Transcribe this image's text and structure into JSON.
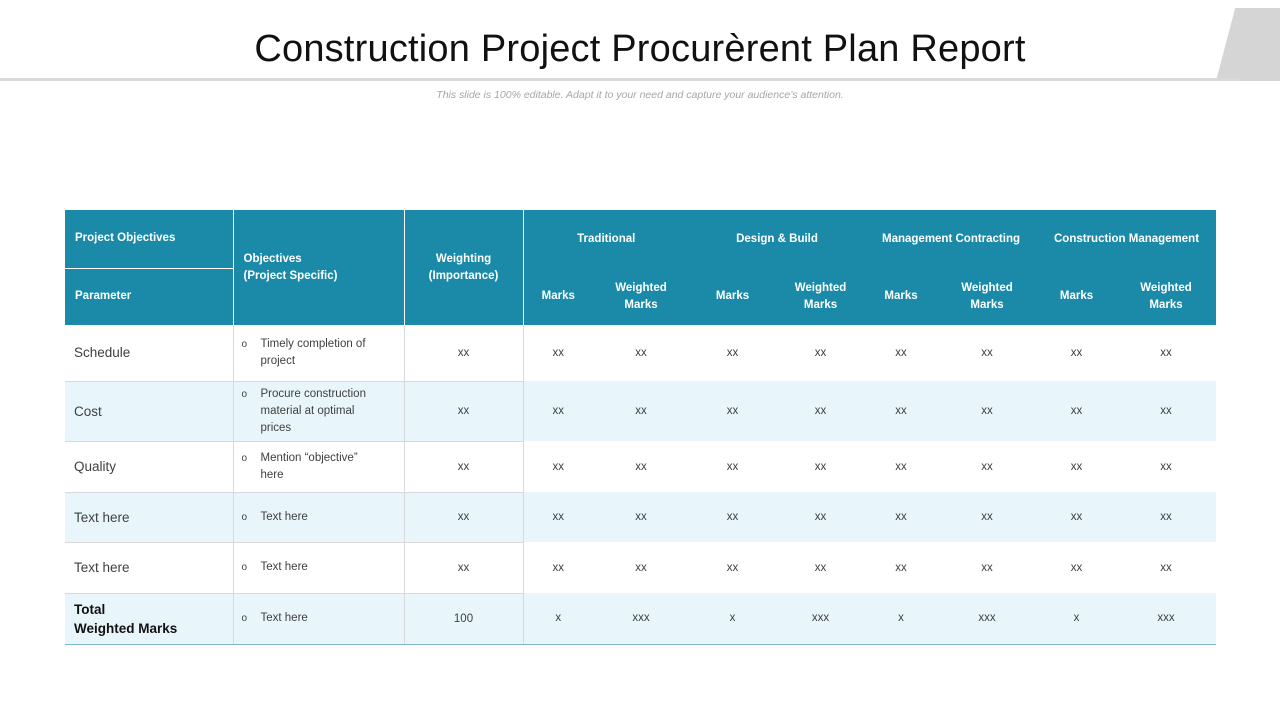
{
  "header": {
    "title": "Construction Project Procurèrent Plan Report",
    "subtitle": "This slide is 100% editable. Adapt it to your need and capture your audience’s attention."
  },
  "table": {
    "headers": {
      "project_objectives": "Project Objectives",
      "parameter": "Parameter",
      "objectives_line1": "Objectives",
      "objectives_line2": "(Project Specific)",
      "weighting_line1": "Weighting",
      "weighting_line2": "(Importance)",
      "groups": [
        "Traditional",
        "Design & Build",
        "Management Contracting",
        "Construction Management"
      ],
      "marks": "Marks",
      "weighted_line1": "Weighted",
      "weighted_line2": "Marks"
    },
    "bullet_symbol": "o",
    "rows": [
      {
        "parameter": "Schedule",
        "objective_lines": [
          "Timely completion of",
          "project"
        ],
        "weighting": "xx",
        "cells": [
          "xx",
          "xx",
          "xx",
          "xx",
          "xx",
          "xx",
          "xx",
          "xx"
        ]
      },
      {
        "parameter": "Cost",
        "objective_lines": [
          "Procure construction",
          "material at optimal",
          "prices"
        ],
        "weighting": "xx",
        "cells": [
          "xx",
          "xx",
          "xx",
          "xx",
          "xx",
          "xx",
          "xx",
          "xx"
        ]
      },
      {
        "parameter": "Quality",
        "objective_lines": [
          "Mention “objective”",
          "here"
        ],
        "weighting": "xx",
        "cells": [
          "xx",
          "xx",
          "xx",
          "xx",
          "xx",
          "xx",
          "xx",
          "xx"
        ]
      },
      {
        "parameter": "Text here",
        "objective_lines": [
          "Text here"
        ],
        "weighting": "xx",
        "cells": [
          "xx",
          "xx",
          "xx",
          "xx",
          "xx",
          "xx",
          "xx",
          "xx"
        ]
      },
      {
        "parameter": "Text here",
        "objective_lines": [
          "Text here"
        ],
        "weighting": "xx",
        "cells": [
          "xx",
          "xx",
          "xx",
          "xx",
          "xx",
          "xx",
          "xx",
          "xx"
        ]
      },
      {
        "parameter_lines": [
          "Total",
          "Weighted Marks"
        ],
        "objective_lines": [
          "Text here"
        ],
        "weighting": "100",
        "cells": [
          "x",
          "xxx",
          "x",
          "xxx",
          "x",
          "xxx",
          "x",
          "xxx"
        ]
      }
    ]
  },
  "colors": {
    "header_bg": "#1a8aa8",
    "row_alt_bg": "#e8f6fb",
    "title_line": "#d9d9d9"
  }
}
